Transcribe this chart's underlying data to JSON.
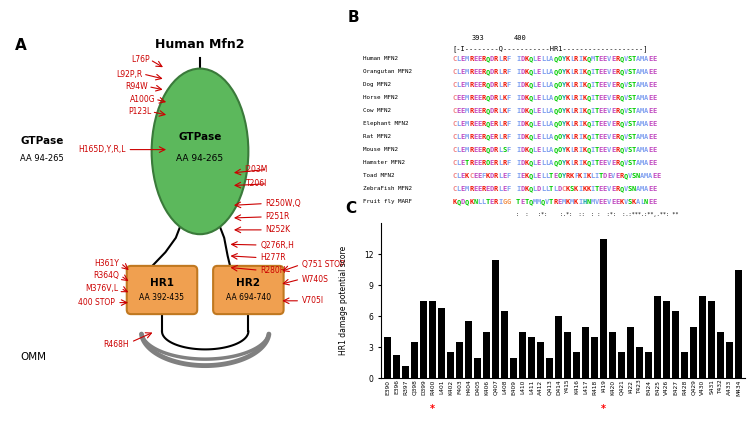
{
  "title_A": "Human Mfn2",
  "bar_categories": [
    "E390",
    "E396",
    "R397",
    "Q398",
    "D399",
    "R400",
    "L401",
    "K402",
    "F403",
    "H404",
    "D405",
    "K406",
    "Q407",
    "L408",
    "E409",
    "L410",
    "L411",
    "A412",
    "Q413",
    "D414",
    "Y415",
    "K416",
    "L417",
    "R418",
    "I419",
    "K420",
    "Q421",
    "I422",
    "T423",
    "E424",
    "E425",
    "V426",
    "E427",
    "R428",
    "Q429",
    "V430",
    "S431",
    "T432",
    "A433",
    "M434"
  ],
  "bar_values": [
    4.0,
    2.2,
    1.2,
    3.5,
    7.5,
    7.5,
    6.8,
    2.5,
    3.5,
    5.5,
    2.0,
    4.5,
    11.5,
    6.5,
    2.0,
    4.5,
    4.0,
    3.5,
    2.0,
    6.0,
    4.5,
    2.5,
    5.0,
    4.0,
    13.5,
    4.5,
    2.5,
    5.0,
    3.0,
    2.5,
    8.0,
    7.5,
    6.5,
    2.5,
    5.0,
    8.0,
    7.5,
    4.5,
    3.5,
    10.5
  ],
  "red_star_indices": [
    5,
    24
  ],
  "bar_color": "#000000",
  "ylabel_C": "HR1 damage potential score",
  "ylim_C": [
    0,
    15
  ],
  "yticks_C": [
    0,
    3,
    6,
    9,
    12
  ],
  "alignment_species": [
    "Human MFN2",
    "Orangutan MFN2",
    "Dog MFN2",
    "Horse MFN2",
    "Cow MFN2",
    "Elephant MFN2",
    "Rat MFN2",
    "Mouse MFN2",
    "Hamster MFN2",
    "Toad MFN2",
    "ZebraFish MFN2",
    "Fruit fly MARF"
  ],
  "alignment_seq1": [
    "CLEMREERQDRLRF",
    "CLEMREERQDRLRF",
    "CLEMREERQDRLRF",
    "CEEMREERQDRLKF",
    "CEEMREERQDRLKF",
    "CLEMREERQERLRF",
    "CLEMREERQERLRF",
    "CLEMREERQDRLSF",
    "CLETREEROERLRF",
    "CLEKCEEFKDRLEF",
    "CLEMREEREDRLEF",
    "KQDQKNLLTERIGG"
  ],
  "alignment_seq2": [
    "IDKQLELLAQOYKLRIKQMTEEVERQVSTAMAEE",
    "IDKQLELLAQOYKLRIKQITEEVERQVSTAMAEE",
    "IDKQLELLAQOYKLRIKQITEEVERQVSTAMAEE",
    "IDKQLELLAQOYKLRIKQITEEVERQVSTAMAEE",
    "IDKQLELLAQOYKLRIKQITEEVERQVSTAMAEE",
    "IDKQLELLAQOYKLRIKQITEEVERQVSTAMAEE",
    "IDKQLELLAQOYKLRIKQITEEVERQVSTAMAEE",
    "IDKQLELLAQOYKLRIKQITEEVERQVSTAMAEE",
    "IDKQLELLAQOYKLRIKQITEEVERQVSTAMAEE",
    "IEKQLELLTEOYRKFKIKLITDEVERQVSNAMAEE",
    "IDKQLDLLTLDCKSKIKKITEEVERQVSNAMAEE",
    "TETQMMQVTREMKMKIHNMVEEVEEKVSKALNEE"
  ],
  "gtpase_color": "#5cb85c",
  "gtpase_edge": "#3a7a3a",
  "hr_color": "#f0a050",
  "hr_edge": "#c07820",
  "omm_color": "#808080",
  "mutation_color": "#cc0000",
  "aa_colors": {
    "A": "#80a0f0",
    "R": "#f01505",
    "N": "#00cc00",
    "D": "#c048c0",
    "C": "#f08080",
    "Q": "#00cc00",
    "E": "#c048c0",
    "G": "#f09048",
    "H": "#15a4a4",
    "I": "#80a0f0",
    "L": "#80a0f0",
    "K": "#f01505",
    "M": "#80a0f0",
    "F": "#80a0f0",
    "P": "#ffcc00",
    "S": "#00cc00",
    "T": "#00cc00",
    "W": "#80a0f0",
    "Y": "#15a4a4",
    "V": "#80a0f0",
    "O": "#00cc00",
    "B": "#ffffff",
    "Z": "#ffffff",
    "X": "#ffffff",
    "-": "#ffffff"
  }
}
